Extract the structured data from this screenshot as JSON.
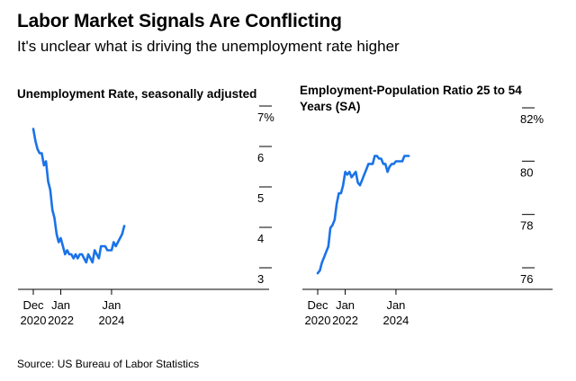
{
  "header": {
    "title": "Labor Market Signals Are Conflicting",
    "subtitle": "It's unclear what is driving the unemployment rate higher"
  },
  "footer": {
    "source": "Source: US Bureau of Labor Statistics"
  },
  "colors": {
    "line": "#1a73e8",
    "axis": "#000000"
  },
  "chart_data": [
    {
      "type": "line",
      "title": "Unemployment Rate, seasonally adjusted",
      "xlabel": "",
      "ylabel": "",
      "ylim": [
        3,
        7
      ],
      "y_ticks": [
        3,
        4,
        5,
        6,
        7
      ],
      "y_tick_labels": [
        "3",
        "4",
        "5",
        "6",
        "7%"
      ],
      "x_ticks": [
        "2020-12",
        "2022-01",
        "2024-01"
      ],
      "x_tick_labels": [
        [
          "Dec",
          "2020"
        ],
        [
          "Jan",
          "2022"
        ],
        [
          "Jan",
          "2024"
        ]
      ],
      "grid": false,
      "series": [
        {
          "x": [
            "2020-12",
            "2021-01",
            "2021-02",
            "2021-03",
            "2021-04",
            "2021-05",
            "2021-06",
            "2021-07",
            "2021-08",
            "2021-09",
            "2021-10",
            "2021-11",
            "2021-12",
            "2022-01",
            "2022-02",
            "2022-03",
            "2022-04",
            "2022-05",
            "2022-06",
            "2022-07",
            "2022-08",
            "2022-09",
            "2022-10",
            "2022-11",
            "2022-12",
            "2023-01",
            "2023-02",
            "2023-03",
            "2023-04",
            "2023-05",
            "2023-06",
            "2023-07",
            "2023-08",
            "2023-09",
            "2023-10",
            "2023-11",
            "2023-12",
            "2024-01",
            "2024-02",
            "2024-03",
            "2024-04",
            "2024-05",
            "2024-06",
            "2024-07"
          ],
          "values": [
            6.7,
            6.4,
            6.2,
            6.1,
            6.1,
            5.8,
            5.9,
            5.4,
            5.2,
            4.7,
            4.5,
            4.1,
            3.9,
            4.0,
            3.8,
            3.6,
            3.7,
            3.6,
            3.6,
            3.5,
            3.6,
            3.5,
            3.6,
            3.6,
            3.5,
            3.4,
            3.6,
            3.5,
            3.4,
            3.7,
            3.6,
            3.5,
            3.8,
            3.8,
            3.8,
            3.7,
            3.7,
            3.7,
            3.9,
            3.8,
            3.9,
            4.0,
            4.1,
            4.3
          ]
        }
      ]
    },
    {
      "type": "line",
      "title": "Employment-Population Ratio 25 to 54 Years (SA)",
      "xlabel": "",
      "ylabel": "",
      "ylim": [
        76,
        82
      ],
      "y_ticks": [
        76,
        78,
        80,
        82
      ],
      "y_tick_labels": [
        "76",
        "78",
        "80",
        "82%"
      ],
      "x_ticks": [
        "2020-12",
        "2022-01",
        "2024-01"
      ],
      "x_tick_labels": [
        [
          "Dec",
          "2020"
        ],
        [
          "Jan",
          "2022"
        ],
        [
          "Jan",
          "2024"
        ]
      ],
      "grid": false,
      "series": [
        {
          "x": [
            "2020-12",
            "2021-01",
            "2021-02",
            "2021-03",
            "2021-04",
            "2021-05",
            "2021-06",
            "2021-07",
            "2021-08",
            "2021-09",
            "2021-10",
            "2021-11",
            "2021-12",
            "2022-01",
            "2022-02",
            "2022-03",
            "2022-04",
            "2022-05",
            "2022-06",
            "2022-07",
            "2022-08",
            "2022-09",
            "2022-10",
            "2022-11",
            "2022-12",
            "2023-01",
            "2023-02",
            "2023-03",
            "2023-04",
            "2023-05",
            "2023-06",
            "2023-07",
            "2023-08",
            "2023-09",
            "2023-10",
            "2023-11",
            "2023-12",
            "2024-01",
            "2024-02",
            "2024-03",
            "2024-04",
            "2024-05",
            "2024-06",
            "2024-07"
          ],
          "values": [
            76.2,
            76.3,
            76.6,
            76.8,
            77.0,
            77.2,
            77.9,
            78.0,
            78.2,
            78.8,
            79.2,
            79.2,
            79.5,
            80.0,
            79.9,
            80.0,
            79.8,
            79.9,
            80.0,
            79.6,
            79.5,
            79.7,
            79.9,
            80.1,
            80.3,
            80.3,
            80.3,
            80.6,
            80.6,
            80.5,
            80.5,
            80.3,
            80.3,
            80.0,
            80.2,
            80.3,
            80.3,
            80.4,
            80.4,
            80.4,
            80.4,
            80.6,
            80.6,
            80.6
          ]
        }
      ]
    }
  ]
}
